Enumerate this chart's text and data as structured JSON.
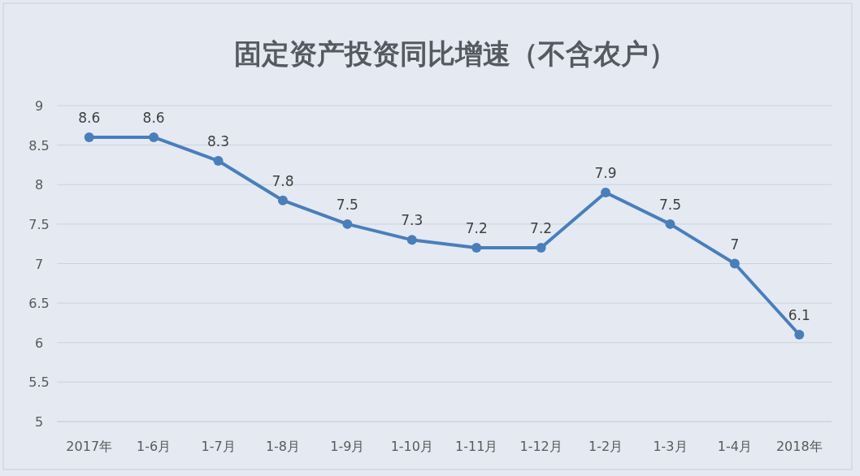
{
  "chart_data": {
    "type": "line",
    "title": "固定资产投资同比增速（不含农户）",
    "categories": [
      "2017年",
      "1-6月",
      "1-7月",
      "1-8月",
      "1-9月",
      "1-10月",
      "1-11月",
      "1-12月",
      "1-2月",
      "1-3月",
      "1-4月",
      "2018年"
    ],
    "values": [
      8.6,
      8.6,
      8.3,
      7.8,
      7.5,
      7.3,
      7.2,
      7.2,
      7.9,
      7.5,
      7,
      6.1
    ],
    "color": "#4a7ebb",
    "ylim": [
      5,
      9
    ],
    "yticks": [
      5,
      5.5,
      6,
      6.5,
      7,
      7.5,
      8,
      8.5,
      9
    ],
    "grid": "y",
    "marker": "circle",
    "data_labels": true,
    "line_style": "solid"
  }
}
